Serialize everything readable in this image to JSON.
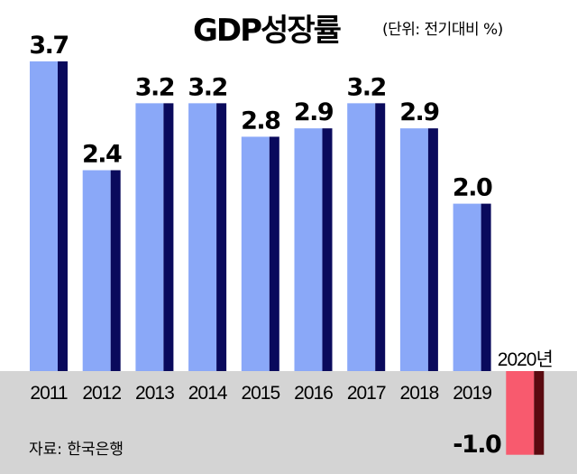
{
  "title": "GDP성장률",
  "unit_note": "(단위: 전기대비 %)",
  "source": "자료: 한국은행",
  "colors": {
    "bar_light": "#8aa8f8",
    "bar_dark": "#0a0a5c",
    "neg_light": "#f85a6e",
    "neg_dark": "#5a0a10",
    "bottom_band": "#d4d4d4"
  },
  "chart_data": {
    "type": "bar",
    "categories": [
      "2011",
      "2012",
      "2013",
      "2014",
      "2015",
      "2016",
      "2017",
      "2018",
      "2019",
      "2020년"
    ],
    "values": [
      3.7,
      2.4,
      3.2,
      3.2,
      2.8,
      2.9,
      3.2,
      2.9,
      2.0,
      -1.0
    ],
    "data_labels": [
      "3.7",
      "2.4",
      "3.2",
      "3.2",
      "2.8",
      "2.9",
      "3.2",
      "2.9",
      "2.0",
      "-1.0"
    ],
    "title": "GDP성장률",
    "ylabel": "",
    "xlabel": "",
    "ylim": [
      -1.2,
      3.9
    ],
    "grid": false,
    "legend": "none"
  }
}
